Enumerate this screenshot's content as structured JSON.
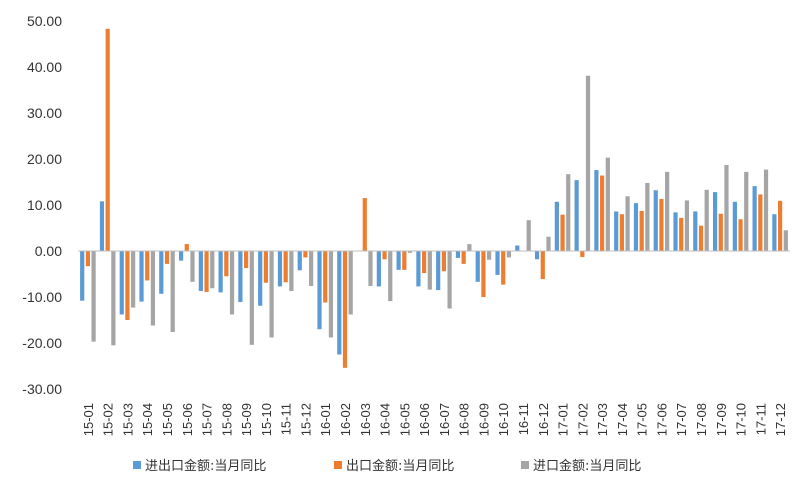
{
  "chart_data": {
    "type": "bar",
    "ylim": [
      -30,
      50
    ],
    "yticks": [
      "50.00",
      "40.00",
      "30.00",
      "20.00",
      "10.00",
      "0.00",
      "-10.00",
      "-20.00",
      "-30.00"
    ],
    "ytick_values": [
      50,
      40,
      30,
      20,
      10,
      0,
      -10,
      -20,
      -30
    ],
    "grid": false,
    "legend_position": "bottom",
    "categories": [
      "15-01",
      "15-02",
      "15-03",
      "15-04",
      "15-05",
      "15-06",
      "15-07",
      "15-08",
      "15-09",
      "15-10",
      "15-11",
      "15-12",
      "16-01",
      "16-02",
      "16-03",
      "16-04",
      "16-05",
      "16-06",
      "16-07",
      "16-08",
      "16-09",
      "16-10",
      "16-11",
      "16-12",
      "17-01",
      "17-02",
      "17-03",
      "17-04",
      "17-05",
      "17-06",
      "17-07",
      "17-08",
      "17-09",
      "17-10",
      "17-11",
      "17-12"
    ],
    "series": [
      {
        "name": "进出口金额:当月同比",
        "color": "#5B9BD5",
        "values": [
          -10.8,
          10.8,
          -13.8,
          -11.0,
          -9.3,
          -2.1,
          -8.7,
          -9.0,
          -11.1,
          -11.9,
          -7.7,
          -4.2,
          -17.0,
          -22.5,
          0.0,
          -7.7,
          -4.1,
          -7.7,
          -8.5,
          -1.5,
          -6.7,
          -5.2,
          1.2,
          -1.8,
          10.7,
          15.4,
          17.6,
          8.6,
          10.4,
          13.2,
          8.4,
          8.6,
          12.8,
          10.7,
          14.1,
          8.0
        ]
      },
      {
        "name": "出口金额:当月同比",
        "color": "#ED7D31",
        "values": [
          -3.3,
          48.3,
          -15.0,
          -6.4,
          -2.8,
          1.5,
          -8.9,
          -5.5,
          -3.7,
          -6.9,
          -6.8,
          -1.4,
          -11.2,
          -25.4,
          11.5,
          -1.8,
          -4.1,
          -4.8,
          -4.4,
          -2.8,
          -10.0,
          -7.3,
          0.1,
          -6.1,
          7.9,
          -1.3,
          16.4,
          8.0,
          8.7,
          11.3,
          7.2,
          5.5,
          8.1,
          6.9,
          12.3,
          10.9
        ]
      },
      {
        "name": "进口金额:当月同比",
        "color": "#A5A5A5",
        "values": [
          -19.7,
          -20.5,
          -12.3,
          -16.2,
          -17.6,
          -6.7,
          -8.1,
          -13.8,
          -20.4,
          -18.8,
          -8.7,
          -7.6,
          -18.8,
          -13.8,
          -7.6,
          -10.9,
          -0.4,
          -8.4,
          -12.5,
          1.5,
          -1.9,
          -1.4,
          6.7,
          3.1,
          16.7,
          38.1,
          20.3,
          11.9,
          14.8,
          17.2,
          11.0,
          13.3,
          18.7,
          17.2,
          17.7,
          4.5
        ]
      }
    ]
  }
}
